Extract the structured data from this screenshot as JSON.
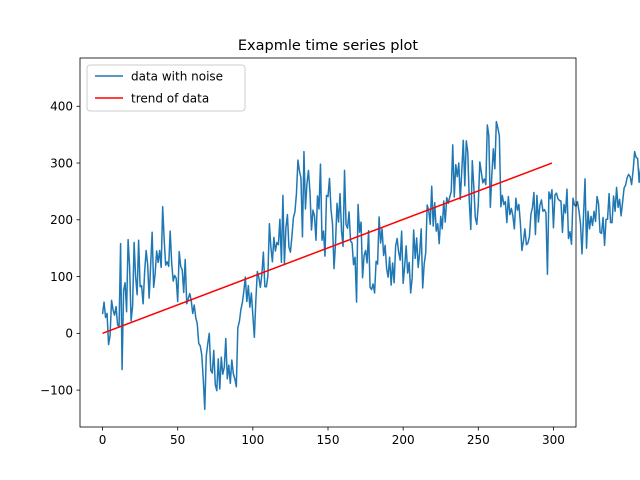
{
  "chart_data": {
    "type": "line",
    "title": "Exapmle time series plot",
    "xlabel": "",
    "ylabel": "",
    "xlim": [
      -15,
      315
    ],
    "ylim": [
      -165,
      485
    ],
    "x_ticks": [
      0,
      50,
      100,
      150,
      200,
      250,
      300
    ],
    "y_ticks": [
      -100,
      0,
      100,
      200,
      300,
      400
    ],
    "grid": false,
    "legend_position": "upper-left",
    "colors": {
      "noise": "#1f77b4",
      "trend": "#ff0000"
    },
    "series": [
      {
        "name": "data with noise",
        "x_start": 0,
        "x_step": 1,
        "values": [
          34,
          55,
          28,
          35,
          -20,
          -4,
          58,
          41,
          32,
          47,
          15,
          11,
          158,
          -64,
          75,
          89,
          38,
          165,
          118,
          22,
          48,
          160,
          100,
          68,
          164,
          82,
          84,
          52,
          108,
          146,
          122,
          62,
          120,
          178,
          81,
          105,
          145,
          125,
          146,
          116,
          223,
          165,
          120,
          126,
          118,
          180,
          124,
          92,
          102,
          97,
          56,
          144,
          118,
          112,
          72,
          130,
          52,
          61,
          70,
          58,
          35,
          50,
          28,
          17,
          -18,
          -22,
          -38,
          -80,
          -134,
          -40,
          -18,
          0,
          -65,
          -70,
          -30,
          -90,
          -101,
          -45,
          -98,
          -42,
          -72,
          -60,
          -9,
          -80,
          -56,
          -88,
          -47,
          -71,
          -80,
          -94,
          10,
          20,
          41,
          54,
          74,
          99,
          56,
          84,
          46,
          71,
          32,
          -7,
          58,
          109,
          98,
          81,
          104,
          143,
          82,
          82,
          101,
          193,
          152,
          126,
          169,
          145,
          160,
          156,
          201,
          125,
          243,
          121,
          186,
          209,
          152,
          143,
          171,
          204,
          214,
          246,
          305,
          286,
          274,
          170,
          320,
          219,
          264,
          287,
          249,
          182,
          217,
          207,
          164,
          242,
          219,
          298,
          164,
          180,
          136,
          243,
          241,
          273,
          218,
          193,
          114,
          159,
          229,
          196,
          246,
          180,
          153,
          287,
          192,
          185,
          214,
          163,
          159,
          121,
          134,
          55,
          227,
          178,
          196,
          98,
          137,
          146,
          124,
          181,
          81,
          77,
          87,
          71,
          127,
          122,
          205,
          159,
          184,
          137,
          155,
          114,
          99,
          134,
          85,
          124,
          89,
          154,
          167,
          143,
          129,
          180,
          88,
          118,
          154,
          106,
          125,
          71,
          98,
          182,
          132,
          168,
          116,
          142,
          184,
          80,
          122,
          142,
          226,
          217,
          192,
          259,
          189,
          230,
          180,
          193,
          158,
          206,
          184,
          233,
          196,
          239,
          229,
          240,
          250,
          332,
          240,
          297,
          276,
          300,
          236,
          286,
          340,
          260,
          339,
          319,
          233,
          183,
          304,
          259,
          204,
          192,
          227,
          302,
          284,
          265,
          272,
          262,
          367,
          348,
          222,
          279,
          325,
          290,
          373,
          362,
          348,
          223,
          243,
          227,
          232,
          195,
          241,
          209,
          220,
          207,
          184,
          238,
          217,
          227,
          194,
          146,
          162,
          184,
          156,
          159,
          170,
          210,
          221,
          248,
          174,
          243,
          196,
          226,
          235,
          215,
          218,
          212,
          104,
          249,
          237,
          253,
          186,
          244,
          247,
          237,
          234,
          233,
          178,
          227,
          212,
          254,
          167,
          179,
          157,
          238,
          226,
          224,
          232,
          215,
          193,
          140,
          207,
          272,
          150,
          215,
          184,
          206,
          190,
          215,
          197,
          241,
          228,
          178,
          176,
          204,
          155,
          201,
          201,
          246,
          195,
          195,
          242,
          215,
          257,
          222,
          236,
          207,
          231,
          256,
          261,
          274,
          280,
          276,
          262,
          287,
          320,
          310,
          308,
          266,
          292,
          278,
          306,
          297,
          307,
          331,
          332,
          318,
          312,
          333,
          336,
          282,
          246,
          286,
          315,
          337,
          306,
          318,
          315,
          326,
          336,
          328,
          312,
          334,
          332,
          328,
          341,
          325,
          340,
          336,
          324,
          318
        ]
      },
      {
        "name": "trend of data",
        "x": [
          0,
          299
        ],
        "values": [
          0,
          300
        ]
      }
    ]
  }
}
